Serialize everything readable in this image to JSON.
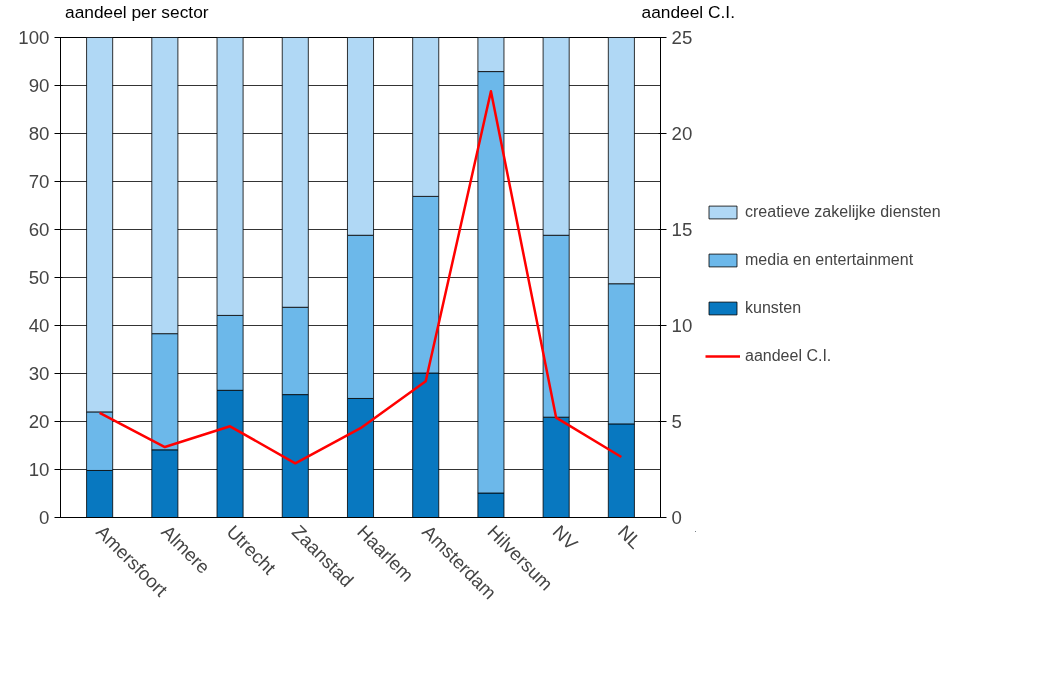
{
  "chart_data": {
    "type": "bar",
    "stacked": true,
    "categories": [
      "Amersfoort",
      "Almere",
      "Utrecht",
      "Zaanstad",
      "Haarlem",
      "Amsterdam",
      "Hilversum",
      "NV",
      "NL"
    ],
    "series": [
      {
        "name": "kunsten",
        "color": "#0878c0",
        "values": [
          9.8,
          14.1,
          26.5,
          25.6,
          24.8,
          30.1,
          5.1,
          20.9,
          19.5
        ]
      },
      {
        "name": "media en entertainment",
        "color": "#6cb8ea",
        "values": [
          12.2,
          24.2,
          15.6,
          18.2,
          34.0,
          36.8,
          87.8,
          37.9,
          29.2
        ]
      },
      {
        "name": "creatieve zakelijke diensten",
        "color": "#b0d8f5",
        "values": [
          78.0,
          61.7,
          57.9,
          56.2,
          41.2,
          33.1,
          7.1,
          41.2,
          51.3
        ]
      },
      {
        "name": "aandeel C.I.",
        "type": "line",
        "axis": "y2",
        "color": "#ff0000",
        "values": [
          5.45,
          3.67,
          4.75,
          2.82,
          4.65,
          7.1,
          22.2,
          5.2,
          3.15
        ]
      }
    ],
    "ylabel": "aandeel per sector",
    "y2label": "aandeel C.I.",
    "ylim": [
      0,
      100
    ],
    "yticks": [
      0,
      10,
      20,
      30,
      40,
      50,
      60,
      70,
      80,
      90,
      100
    ],
    "y2lim": [
      0,
      25
    ],
    "y2ticks": [
      0,
      5,
      10,
      15,
      20,
      25
    ],
    "grid": "y",
    "legend": "right",
    "marker": "none"
  }
}
